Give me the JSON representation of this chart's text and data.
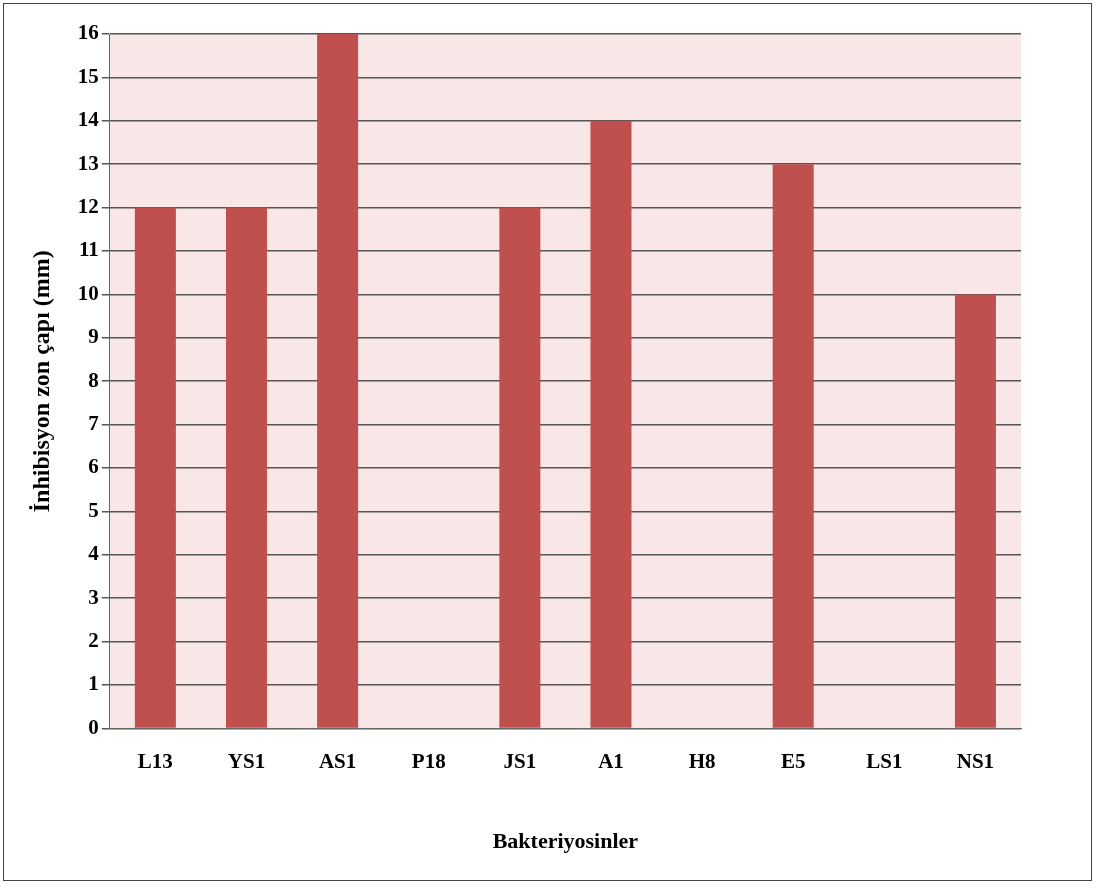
{
  "chart_data": {
    "type": "bar",
    "xlabel": "Bakteriyosinler",
    "ylabel": "İnhibisyon zon çapı (mm)",
    "categories": [
      "L13",
      "YS1",
      "AS1",
      "P18",
      "JS1",
      "A1",
      "H8",
      "E5",
      "LS1",
      "NS1"
    ],
    "values": [
      12,
      12,
      16,
      0,
      12,
      14,
      0,
      13,
      0,
      10
    ],
    "color": "#c0504d",
    "ylim": [
      0,
      16
    ],
    "yticks": [
      0,
      1,
      2,
      3,
      4,
      5,
      6,
      7,
      8,
      9,
      10,
      11,
      12,
      13,
      14,
      15,
      16
    ],
    "grid": "y"
  }
}
